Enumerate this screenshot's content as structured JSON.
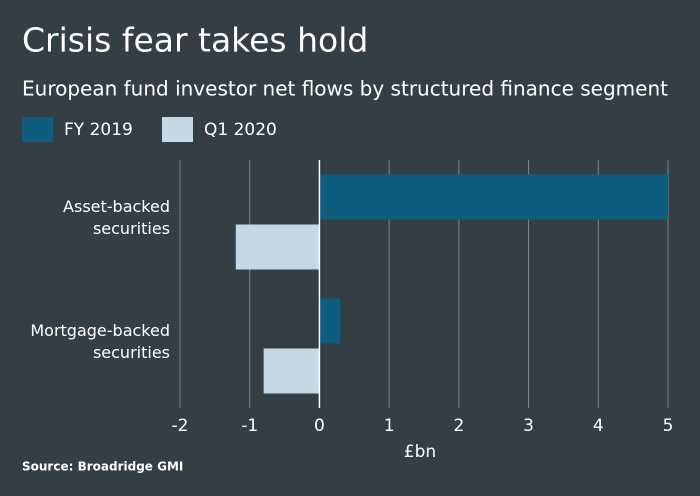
{
  "chart_data": {
    "type": "bar",
    "orientation": "horizontal",
    "title": "Crisis fear takes hold",
    "subtitle": "European fund investor net flows by structured finance segment",
    "categories": [
      "Asset-backed securities",
      "Mortgage-backed securities"
    ],
    "series": [
      {
        "name": "FY 2019",
        "color": "#0e5d7e",
        "values": [
          5.0,
          0.3
        ]
      },
      {
        "name": "Q1 2020",
        "color": "#c5d9e5",
        "values": [
          -1.2,
          -0.8
        ]
      }
    ],
    "xlim": [
      -2,
      5
    ],
    "xticks": [
      -2,
      -1,
      0,
      1,
      2,
      3,
      4,
      5
    ],
    "xlabel": "£bn",
    "grid": true,
    "source": "Source: Broadridge GMI"
  }
}
